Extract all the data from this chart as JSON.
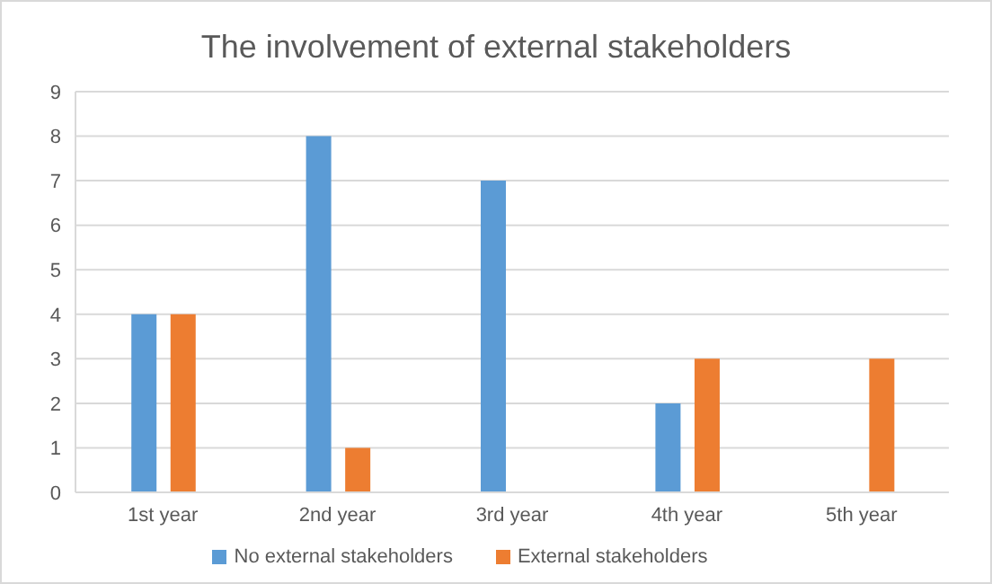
{
  "chart_data": {
    "type": "bar",
    "title": "The involvement of external stakeholders",
    "categories": [
      "1st year",
      "2nd year",
      "3rd year",
      "4th year",
      "5th year"
    ],
    "series": [
      {
        "name": "No external stakeholders",
        "color": "#5b9bd5",
        "values": [
          4,
          8,
          7,
          2,
          0
        ]
      },
      {
        "name": "External stakeholders",
        "color": "#ed7d31",
        "values": [
          4,
          1,
          0,
          3,
          3
        ]
      }
    ],
    "ylim": [
      0,
      9
    ],
    "yticks": [
      0,
      1,
      2,
      3,
      4,
      5,
      6,
      7,
      8,
      9
    ],
    "grid": "y",
    "legend": "bottom"
  }
}
